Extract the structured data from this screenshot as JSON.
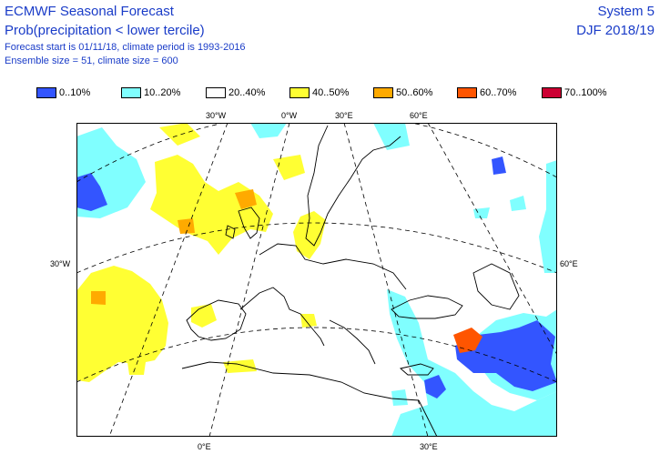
{
  "header": {
    "title": "ECMWF Seasonal Forecast",
    "subtitle": "Prob(precipitation < lower tercile)",
    "info_line1": "Forecast start is 01/11/18, climate period is 1993-2016",
    "info_line2": "Ensemble size = 51, climate size = 600",
    "system": "System 5",
    "season": "DJF 2018/19"
  },
  "legend": [
    {
      "label": "0..10%",
      "color": "#3355ff"
    },
    {
      "label": "10..20%",
      "color": "#80ffff"
    },
    {
      "label": "20..40%",
      "color": "#ffffff"
    },
    {
      "label": "40..50%",
      "color": "#ffff33"
    },
    {
      "label": "50..60%",
      "color": "#ffaa00"
    },
    {
      "label": "60..70%",
      "color": "#ff5500"
    },
    {
      "label": "70..100%",
      "color": "#cc0033"
    }
  ],
  "axes": {
    "lon_top": [
      "30°W",
      "0°W",
      "30°E",
      "60°E"
    ],
    "lon_bottom": [
      "0°E",
      "30°E"
    ],
    "lat_left": "30°W",
    "lat_right": "60°E"
  }
}
